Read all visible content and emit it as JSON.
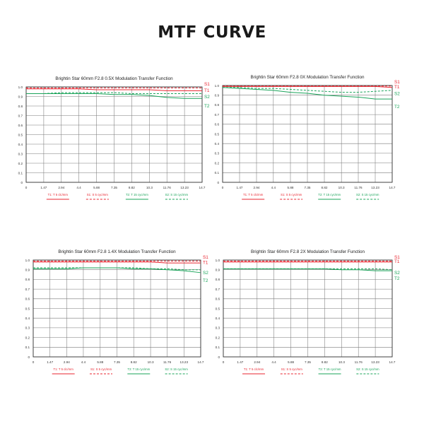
{
  "page": {
    "title": "MTF CURVE"
  },
  "colors": {
    "s1": "#e8242f",
    "t1": "#e8242f",
    "s2": "#1aa45a",
    "t2": "#1aa45a",
    "grid": "#7a7a7a",
    "text": "#222222"
  },
  "legend_labels": [
    "T1: T 5 clc/mm",
    "S1: S 5 cyc/mm",
    "T2: T 15 cyc/mm",
    "S2: S 15 cyc/mm"
  ],
  "chart_data": [
    {
      "type": "line",
      "title": "Brightin Star 60mm F2.8 0.5X Modulation Transfer Function",
      "xlabel": "",
      "ylabel": "",
      "xlim": [
        0,
        14.7
      ],
      "ylim": [
        0,
        1.0
      ],
      "grid": true,
      "legend": "bottom",
      "xticks": [
        "0",
        "1.47",
        "2.94",
        "4.4",
        "5.88",
        "7.35",
        "8.82",
        "10.3",
        "11.76",
        "13.23",
        "14.7"
      ],
      "yticks": [
        "0",
        "0.1",
        "0.2",
        "0.3",
        "0.4",
        "0.5",
        "0.6",
        "0.7",
        "0.8",
        "0.9",
        "1.0"
      ],
      "x": [
        0,
        1.47,
        2.94,
        4.4,
        5.88,
        7.35,
        8.82,
        10.3,
        11.76,
        13.23,
        14.7
      ],
      "series": [
        {
          "name": "S1",
          "key": "s1",
          "dashed": true,
          "values": [
            0.99,
            0.99,
            0.99,
            0.99,
            0.99,
            0.99,
            0.99,
            0.99,
            0.99,
            0.99,
            0.99
          ]
        },
        {
          "name": "T1",
          "key": "t1",
          "dashed": false,
          "values": [
            0.98,
            0.98,
            0.98,
            0.98,
            0.97,
            0.97,
            0.97,
            0.97,
            0.96,
            0.96,
            0.96
          ]
        },
        {
          "name": "S2",
          "key": "s2",
          "dashed": true,
          "values": [
            0.93,
            0.93,
            0.94,
            0.94,
            0.94,
            0.94,
            0.93,
            0.93,
            0.93,
            0.93,
            0.93
          ]
        },
        {
          "name": "T2",
          "key": "t2",
          "dashed": false,
          "values": [
            0.93,
            0.93,
            0.93,
            0.93,
            0.93,
            0.92,
            0.92,
            0.91,
            0.89,
            0.88,
            0.88
          ]
        }
      ]
    },
    {
      "type": "line",
      "title": "Brightin Star 60mm F2.8 0X Modulation Transfer Function",
      "xlabel": "",
      "ylabel": "",
      "xlim": [
        0,
        14.7
      ],
      "ylim": [
        0,
        1.0
      ],
      "grid": true,
      "legend": "bottom",
      "xticks": [
        "0",
        "1.47",
        "2.94",
        "4.4",
        "5.88",
        "7.35",
        "8.82",
        "10.3",
        "11.76",
        "13.23",
        "14.7"
      ],
      "yticks": [
        "0",
        "0.1",
        "0.2",
        "0.3",
        "0.4",
        "0.5",
        "0.6",
        "0.7",
        "0.8",
        "0.9",
        "1.0"
      ],
      "x": [
        0,
        1.47,
        2.94,
        4.4,
        5.88,
        7.35,
        8.82,
        10.3,
        11.76,
        13.23,
        14.7
      ],
      "series": [
        {
          "name": "S1",
          "key": "s1",
          "dashed": true,
          "values": [
            0.995,
            0.995,
            0.995,
            0.995,
            0.995,
            0.995,
            0.995,
            0.995,
            0.995,
            0.995,
            0.995
          ]
        },
        {
          "name": "T1",
          "key": "t1",
          "dashed": false,
          "values": [
            0.99,
            0.99,
            0.99,
            0.99,
            0.99,
            0.99,
            0.99,
            0.99,
            0.99,
            0.99,
            0.98
          ]
        },
        {
          "name": "S2",
          "key": "s2",
          "dashed": true,
          "values": [
            0.98,
            0.98,
            0.97,
            0.97,
            0.96,
            0.95,
            0.94,
            0.93,
            0.93,
            0.94,
            0.95
          ]
        },
        {
          "name": "T2",
          "key": "t2",
          "dashed": false,
          "values": [
            0.98,
            0.97,
            0.96,
            0.95,
            0.93,
            0.92,
            0.9,
            0.89,
            0.88,
            0.86,
            0.86
          ]
        }
      ]
    },
    {
      "type": "line",
      "title": "Brightin Star 60mm F2.8 1.4X Modulation Transfer Function",
      "xlabel": "",
      "ylabel": "",
      "xlim": [
        0,
        14.7
      ],
      "ylim": [
        0,
        1.0
      ],
      "grid": true,
      "legend": "bottom",
      "xticks": [
        "0",
        "1.47",
        "2.94",
        "4.4",
        "5.88",
        "7.35",
        "8.82",
        "10.3",
        "11.76",
        "13.23",
        "14.7"
      ],
      "yticks": [
        "0",
        "0.1",
        "0.2",
        "0.3",
        "0.4",
        "0.5",
        "0.6",
        "0.7",
        "0.8",
        "0.9",
        "1.0"
      ],
      "x": [
        0,
        1.47,
        2.94,
        4.4,
        5.88,
        7.35,
        8.82,
        10.3,
        11.76,
        13.23,
        14.7
      ],
      "series": [
        {
          "name": "S1",
          "key": "s1",
          "dashed": true,
          "values": [
            0.99,
            0.99,
            0.99,
            0.99,
            0.99,
            0.99,
            0.99,
            0.99,
            0.99,
            0.99,
            0.99
          ]
        },
        {
          "name": "T1",
          "key": "t1",
          "dashed": false,
          "values": [
            0.98,
            0.98,
            0.98,
            0.98,
            0.98,
            0.98,
            0.98,
            0.98,
            0.97,
            0.97,
            0.97
          ]
        },
        {
          "name": "S2",
          "key": "s2",
          "dashed": true,
          "values": [
            0.92,
            0.92,
            0.92,
            0.92,
            0.92,
            0.92,
            0.92,
            0.91,
            0.91,
            0.9,
            0.9
          ]
        },
        {
          "name": "T2",
          "key": "t2",
          "dashed": false,
          "values": [
            0.91,
            0.91,
            0.91,
            0.92,
            0.92,
            0.92,
            0.91,
            0.91,
            0.9,
            0.89,
            0.87
          ]
        }
      ]
    },
    {
      "type": "line",
      "title": "Brightin Star 60mm F2.8 2X Modulation Transfer Function",
      "xlabel": "",
      "ylabel": "",
      "xlim": [
        0,
        14.7
      ],
      "ylim": [
        0,
        1.0
      ],
      "grid": true,
      "legend": "bottom",
      "xticks": [
        "0",
        "1.47",
        "2.94",
        "4.4",
        "5.88",
        "7.35",
        "8.82",
        "10.3",
        "11.76",
        "13.23",
        "14.7"
      ],
      "yticks": [
        "0",
        "0.1",
        "0.2",
        "0.3",
        "0.4",
        "0.5",
        "0.6",
        "0.7",
        "0.8",
        "0.9",
        "1.0"
      ],
      "x": [
        0,
        1.47,
        2.94,
        4.4,
        5.88,
        7.35,
        8.82,
        10.3,
        11.76,
        13.23,
        14.7
      ],
      "series": [
        {
          "name": "S1",
          "key": "s1",
          "dashed": true,
          "values": [
            0.99,
            0.99,
            0.99,
            0.99,
            0.99,
            0.99,
            0.99,
            0.99,
            0.99,
            0.99,
            0.99
          ]
        },
        {
          "name": "T1",
          "key": "t1",
          "dashed": false,
          "values": [
            0.98,
            0.98,
            0.98,
            0.98,
            0.98,
            0.98,
            0.98,
            0.98,
            0.98,
            0.98,
            0.98
          ]
        },
        {
          "name": "S2",
          "key": "s2",
          "dashed": true,
          "values": [
            0.91,
            0.91,
            0.91,
            0.91,
            0.91,
            0.91,
            0.91,
            0.91,
            0.91,
            0.91,
            0.9
          ]
        },
        {
          "name": "T2",
          "key": "t2",
          "dashed": false,
          "values": [
            0.91,
            0.91,
            0.91,
            0.91,
            0.91,
            0.91,
            0.91,
            0.9,
            0.9,
            0.89,
            0.89
          ]
        }
      ]
    }
  ]
}
